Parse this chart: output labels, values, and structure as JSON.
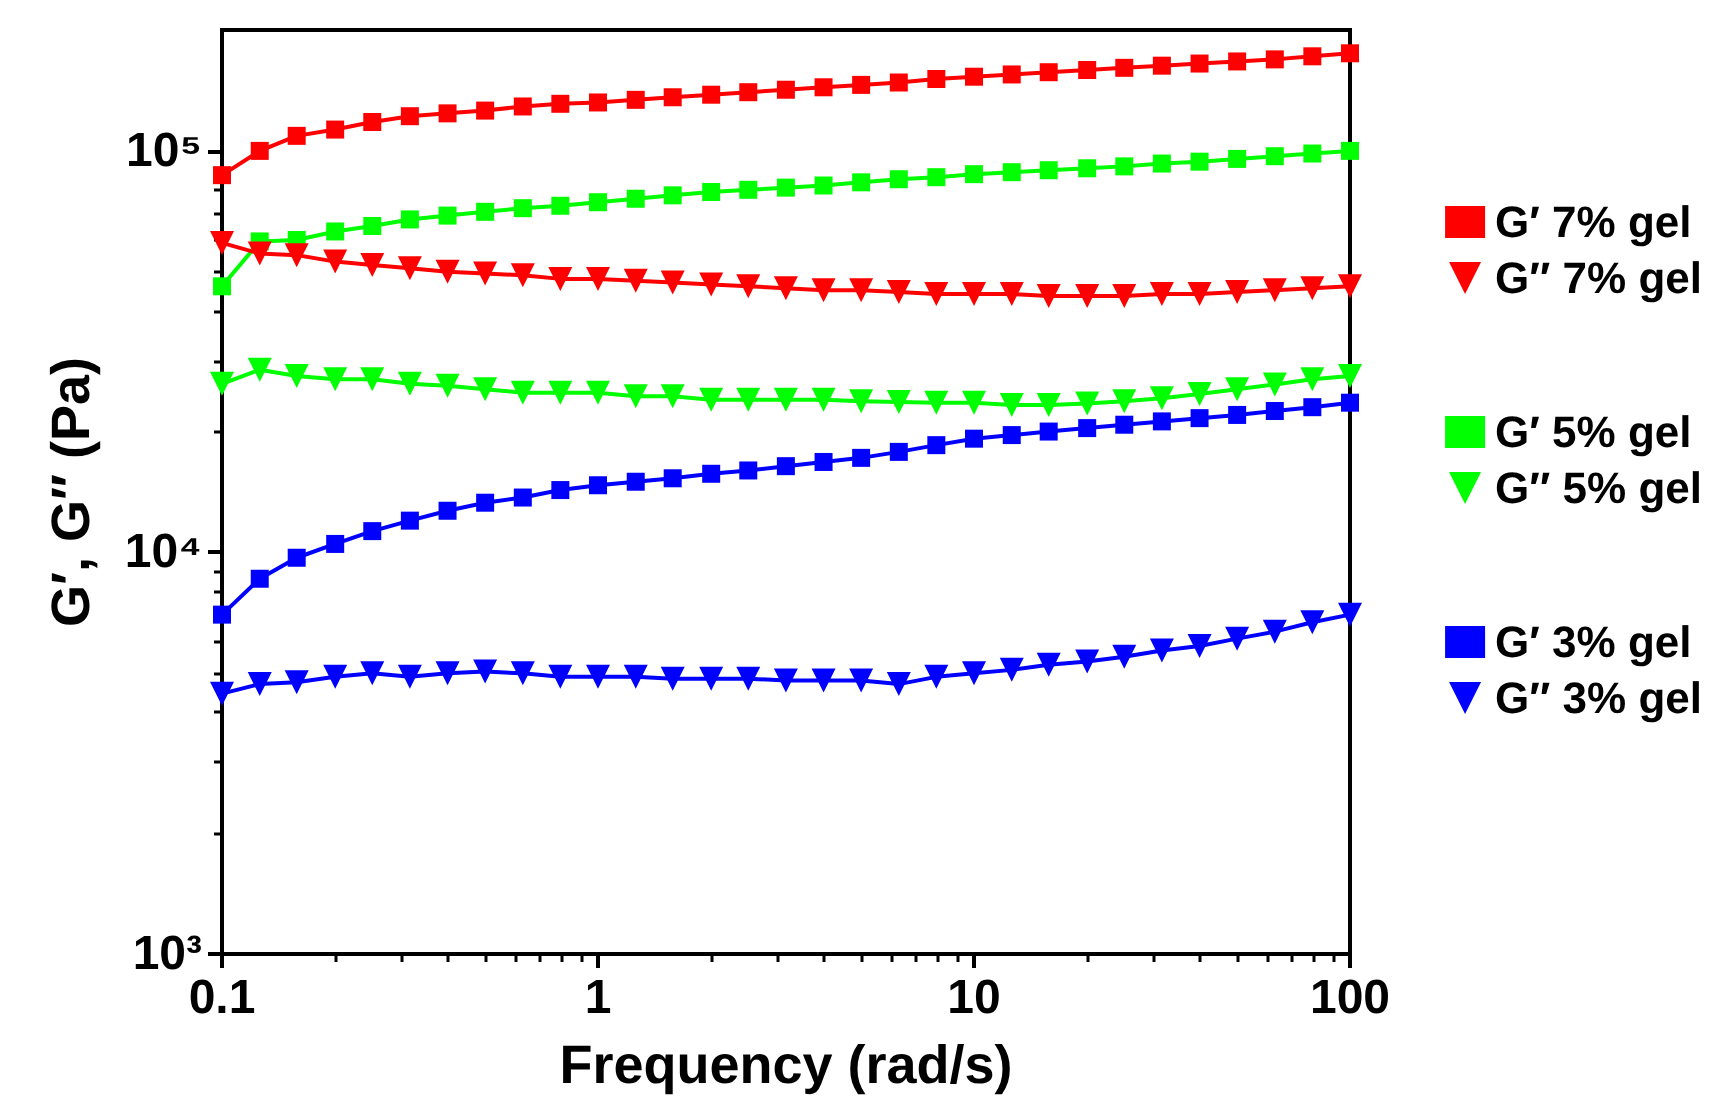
{
  "chart_data": {
    "type": "line",
    "xlabel": "Frequency (rad/s)",
    "ylabel": "G′, G″ (Pa)",
    "log": "xy",
    "grid": false,
    "legend": "right",
    "xlim": [
      0.1,
      100
    ],
    "xticks": [
      0.1,
      1,
      10,
      100
    ],
    "ylim": [
      1000,
      200000
    ],
    "yticks": [
      {
        "value": 1000,
        "label": "10³"
      },
      {
        "value": 10000,
        "label": "10⁴"
      },
      {
        "value": 100000,
        "label": "10⁵"
      }
    ],
    "x": [
      0.1,
      0.126,
      0.158,
      0.2,
      0.251,
      0.316,
      0.398,
      0.501,
      0.631,
      0.794,
      1,
      1.26,
      1.58,
      2,
      2.51,
      3.16,
      3.98,
      5.01,
      6.31,
      7.94,
      10,
      12.6,
      15.8,
      20,
      25.1,
      31.6,
      39.8,
      50.1,
      63.1,
      79.4,
      100
    ],
    "series": [
      {
        "name": "G′ 7% gel",
        "color": "#ff0000",
        "marker": "square",
        "values": [
          87000,
          100000,
          109000,
          113000,
          118000,
          122000,
          124000,
          126000,
          129000,
          131000,
          132000,
          134000,
          136000,
          138000,
          140000,
          142000,
          144000,
          146000,
          148000,
          151000,
          153000,
          155000,
          157000,
          159000,
          161000,
          163000,
          165000,
          167000,
          169000,
          172000,
          175000
        ]
      },
      {
        "name": "G″ 7% gel",
        "color": "#ff0000",
        "marker": "triangle",
        "values": [
          59000,
          55500,
          55000,
          53000,
          52000,
          51000,
          50000,
          49500,
          49000,
          48000,
          48000,
          47500,
          47000,
          46500,
          46000,
          45500,
          45000,
          45000,
          44500,
          44000,
          44000,
          44000,
          43500,
          43500,
          43500,
          44000,
          44000,
          44500,
          45000,
          45500,
          46000
        ]
      },
      {
        "name": "G′ 5% gel",
        "color": "#00ff00",
        "marker": "square",
        "values": [
          46000,
          59500,
          60000,
          63000,
          65000,
          67500,
          69000,
          70500,
          72000,
          73000,
          74500,
          76000,
          77500,
          79000,
          80000,
          81000,
          82000,
          83500,
          85000,
          86000,
          87500,
          88500,
          89500,
          90500,
          91500,
          93000,
          94000,
          95500,
          97000,
          98500,
          100000
        ]
      },
      {
        "name": "G″ 5% gel",
        "color": "#00ff00",
        "marker": "triangle",
        "values": [
          26300,
          28500,
          27500,
          27000,
          27000,
          26300,
          26000,
          25500,
          25000,
          25000,
          25000,
          24500,
          24500,
          24000,
          24000,
          24000,
          24000,
          23800,
          23700,
          23600,
          23600,
          23300,
          23300,
          23500,
          23800,
          24200,
          24800,
          25500,
          26200,
          27000,
          27500
        ]
      },
      {
        "name": "G′ 3% gel",
        "color": "#0000ff",
        "marker": "square",
        "values": [
          7000,
          8600,
          9700,
          10500,
          11300,
          12000,
          12700,
          13300,
          13700,
          14300,
          14700,
          15000,
          15300,
          15700,
          16000,
          16400,
          16800,
          17200,
          17800,
          18500,
          19200,
          19600,
          20000,
          20400,
          20800,
          21200,
          21600,
          22000,
          22500,
          23000,
          23600
        ]
      },
      {
        "name": "G″ 3% gel",
        "color": "#0000ff",
        "marker": "triangle",
        "values": [
          4450,
          4700,
          4750,
          4900,
          5000,
          4900,
          5000,
          5050,
          5000,
          4900,
          4900,
          4900,
          4850,
          4850,
          4850,
          4800,
          4800,
          4800,
          4700,
          4900,
          5000,
          5100,
          5250,
          5350,
          5500,
          5700,
          5850,
          6100,
          6350,
          6700,
          7000
        ]
      }
    ]
  }
}
